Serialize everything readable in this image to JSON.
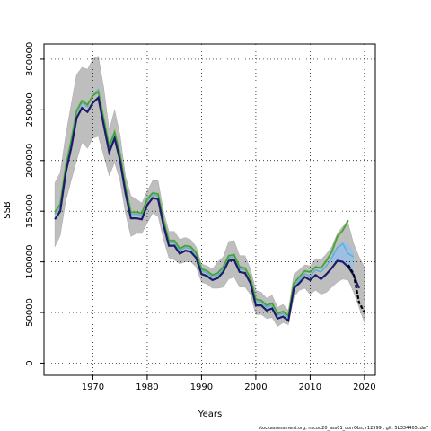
{
  "chart_data": {
    "type": "line",
    "xlabel": "Years",
    "ylabel": "SSB",
    "xlim": [
      1961,
      2022
    ],
    "ylim": [
      -12000,
      315000
    ],
    "x_ticks": [
      1970,
      1980,
      1990,
      2000,
      2010,
      2020
    ],
    "y_ticks": [
      0,
      50000,
      100000,
      150000,
      200000,
      250000,
      300000
    ],
    "grid": "dotted",
    "footer": "stockassessment.org, nscod20_ass01_corrObs, r12599 , git: 5b334405cda7",
    "colors": {
      "band_gray": "#bebebe",
      "band_blue": "#9ac0e6",
      "navy": "#1c1c6b",
      "green": "#2e9e5e",
      "olive": "#8db83a",
      "cyan": "#5fb0e0",
      "black": "#000000"
    },
    "band": {
      "x": [
        1963,
        1964,
        1965,
        1966,
        1967,
        1968,
        1969,
        1970,
        1971,
        1972,
        1973,
        1974,
        1975,
        1976,
        1977,
        1978,
        1979,
        1980,
        1981,
        1982,
        1983,
        1984,
        1985,
        1986,
        1987,
        1988,
        1989,
        1990,
        1991,
        1992,
        1993,
        1994,
        1995,
        1996,
        1997,
        1998,
        1999,
        2000,
        2001,
        2002,
        2003,
        2004,
        2005,
        2006,
        2007,
        2008,
        2009,
        2010,
        2011,
        2012,
        2013,
        2014,
        2015,
        2016,
        2017,
        2018,
        2019,
        2020
      ],
      "upper": [
        178000,
        188000,
        225000,
        255000,
        285000,
        292000,
        290000,
        300000,
        303000,
        272000,
        230000,
        250000,
        225000,
        185000,
        165000,
        162000,
        158000,
        170000,
        180000,
        180000,
        150000,
        130000,
        130000,
        122000,
        124000,
        122000,
        115000,
        98000,
        96000,
        93000,
        100000,
        105000,
        120000,
        121000,
        106000,
        106000,
        93000,
        72000,
        70000,
        64000,
        67000,
        55000,
        58000,
        52000,
        88000,
        92000,
        97000,
        96000,
        103000,
        102000,
        108000,
        115000,
        128000,
        135000,
        138000,
        118000,
        105000,
        95000
      ],
      "lower": [
        115000,
        126000,
        160000,
        180000,
        200000,
        218000,
        212000,
        222000,
        224000,
        205000,
        185000,
        198000,
        180000,
        148000,
        125000,
        128000,
        128000,
        138000,
        148000,
        145000,
        122000,
        104000,
        102000,
        98000,
        100000,
        100000,
        95000,
        80000,
        78000,
        74000,
        74000,
        75000,
        83000,
        85000,
        75000,
        75000,
        68000,
        48000,
        48000,
        44000,
        45000,
        36000,
        40000,
        38000,
        65000,
        72000,
        74000,
        68000,
        72000,
        68000,
        70000,
        75000,
        80000,
        83000,
        82000,
        70000,
        55000,
        40000
      ]
    },
    "band_blue": {
      "x": [
        2014,
        2015,
        2016,
        2017,
        2018
      ],
      "upper": [
        108000,
        115000,
        120000,
        118000,
        110000
      ],
      "lower": [
        98000,
        100000,
        98000,
        94000,
        85000
      ]
    },
    "series": [
      {
        "key": "main",
        "x": [
          1963,
          1964,
          1965,
          1966,
          1967,
          1968,
          1969,
          1970,
          1971,
          1972,
          1973,
          1974,
          1975,
          1976,
          1977,
          1978,
          1979,
          1980,
          1981,
          1982,
          1983,
          1984,
          1985,
          1986,
          1987,
          1988,
          1989,
          1990,
          1991,
          1992,
          1993,
          1994,
          1995,
          1996,
          1997,
          1998,
          1999,
          2000,
          2001,
          2002,
          2003,
          2004,
          2005,
          2006,
          2007,
          2008,
          2009,
          2010,
          2011,
          2012,
          2013,
          2014,
          2015,
          2016,
          2017,
          2018,
          2019
        ],
        "y": [
          142000,
          150000,
          188000,
          212000,
          242000,
          252000,
          248000,
          257000,
          262000,
          235000,
          208000,
          222000,
          200000,
          168000,
          143000,
          143000,
          142000,
          156000,
          163000,
          162000,
          136000,
          116000,
          116000,
          108000,
          111000,
          110000,
          104000,
          88000,
          86000,
          82000,
          84000,
          90000,
          101000,
          102000,
          90000,
          89000,
          79000,
          57000,
          57000,
          52000,
          54000,
          44000,
          46000,
          42000,
          74000,
          79000,
          85000,
          82000,
          87000,
          83000,
          88000,
          94000,
          101000,
          100000,
          95000,
          87000,
          74000
        ]
      },
      {
        "key": "green_top",
        "x": [
          1963,
          1964,
          1965,
          1966,
          1967,
          1968,
          1969,
          1970,
          1971,
          1972,
          1973,
          1974,
          1975,
          1976,
          1977,
          1978,
          1979,
          1980,
          1981,
          1982,
          1983,
          1984,
          1985,
          1986,
          1987,
          1988,
          1989,
          1990,
          1991,
          1992,
          1993,
          1994,
          1995,
          1996,
          1997,
          1998,
          1999,
          2000,
          2001,
          2002,
          2003,
          2004,
          2005,
          2006,
          2007,
          2008,
          2009,
          2010,
          2011,
          2012,
          2013,
          2014,
          2015,
          2016,
          2017
        ],
        "y": [
          149000,
          157000,
          194000,
          219000,
          249000,
          259000,
          255000,
          264000,
          268000,
          241000,
          214000,
          228000,
          206000,
          174000,
          149000,
          149000,
          148000,
          162000,
          168000,
          167000,
          141000,
          121000,
          121000,
          113000,
          116000,
          115000,
          109000,
          93000,
          91000,
          87000,
          89000,
          95000,
          106000,
          107000,
          95000,
          94000,
          84000,
          63000,
          62000,
          57000,
          59000,
          49000,
          51000,
          47000,
          79000,
          85000,
          91000,
          90000,
          95000,
          94000,
          101000,
          110000,
          125000,
          131000,
          141000
        ]
      },
      {
        "key": "cyan",
        "x": [
          1963,
          1964,
          1965,
          1966,
          1967,
          1968,
          1969,
          1970,
          1971,
          1972,
          1973,
          1974,
          1975,
          1976,
          1977,
          1978,
          1979,
          1980,
          1981,
          1982,
          1983,
          1984,
          1985,
          1986,
          1987,
          1988,
          1989,
          1990,
          1991,
          1992,
          1993,
          1994,
          1995,
          1996,
          1997,
          1998,
          1999,
          2000,
          2001,
          2002,
          2003,
          2004,
          2005,
          2006,
          2007,
          2008,
          2009,
          2010,
          2011,
          2012,
          2013,
          2014,
          2015,
          2016,
          2017,
          2018
        ],
        "y": [
          147000,
          155000,
          192000,
          217000,
          247000,
          257000,
          253000,
          265000,
          270000,
          239000,
          212000,
          226000,
          204000,
          172000,
          147000,
          147000,
          146000,
          160000,
          166000,
          165000,
          139000,
          119000,
          119000,
          111000,
          114000,
          113000,
          107000,
          91000,
          89000,
          85000,
          87000,
          93000,
          104000,
          105000,
          93000,
          92000,
          82000,
          61000,
          60000,
          55000,
          57000,
          47000,
          49000,
          45000,
          77000,
          82000,
          88000,
          86000,
          92000,
          90000,
          96000,
          104000,
          114000,
          118000,
          108000,
          105000
        ]
      },
      {
        "key": "black_tail",
        "x": [
          2017,
          2018,
          2019,
          2020
        ],
        "y": [
          97000,
          88000,
          60000,
          50000
        ]
      }
    ]
  }
}
